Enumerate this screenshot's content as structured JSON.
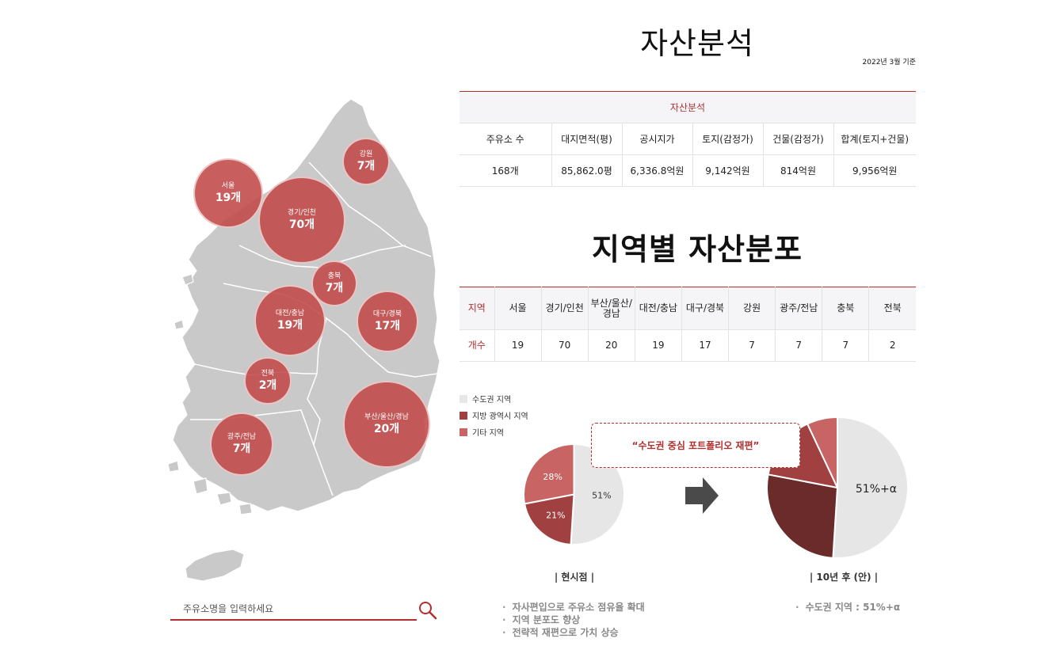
{
  "header": {
    "title": "자산분석",
    "as_of": "2022년 3월 기준",
    "region_title": "지역별 자산분포"
  },
  "asset_table": {
    "caption": "자산분석",
    "headers": [
      "주유소 수",
      "대지면적(평)",
      "공시지가",
      "토지(감정가)",
      "건물(감정가)",
      "합계(토지+건물)"
    ],
    "values": [
      "168개",
      "85,862.0평",
      "6,336.8억원",
      "9,142억원",
      "814억원",
      "9,956억원"
    ]
  },
  "region_table": {
    "row1_label": "지역",
    "row2_label": "개수",
    "regions": [
      "서울",
      "경기/인천",
      "부산/울산/경남",
      "대전/충남",
      "대구/경북",
      "강원",
      "광주/전남",
      "충북",
      "전북"
    ],
    "counts": [
      "19",
      "70",
      "20",
      "19",
      "17",
      "7",
      "7",
      "7",
      "2"
    ]
  },
  "map": {
    "bubbles": [
      {
        "name": "서울",
        "count": "19개"
      },
      {
        "name": "경기/인천",
        "count": "70개"
      },
      {
        "name": "강원",
        "count": "7개"
      },
      {
        "name": "충북",
        "count": "7개"
      },
      {
        "name": "대전/충남",
        "count": "19개"
      },
      {
        "name": "대구/경북",
        "count": "17개"
      },
      {
        "name": "전북",
        "count": "2개"
      },
      {
        "name": "부산/울산/경남",
        "count": "20개"
      },
      {
        "name": "광주/전남",
        "count": "7개"
      }
    ]
  },
  "search": {
    "placeholder": "주유소명을 입력하세요",
    "icon": "search-icon"
  },
  "legend": [
    {
      "label": "수도권 지역",
      "color": "#e6e6e6"
    },
    {
      "label": "지방 광역시 지역",
      "color": "#a04040"
    },
    {
      "label": "기타 지역",
      "color": "#c86464"
    }
  ],
  "pie_current": {
    "caption": "| 현시점 |",
    "slices": [
      {
        "label": "51%",
        "value": 51,
        "color": "#e6e6e6"
      },
      {
        "label": "21%",
        "value": 21,
        "color": "#a04040"
      },
      {
        "label": "28%",
        "value": 28,
        "color": "#c86464"
      }
    ],
    "bullets": [
      "자사편입으로 주유소 점유율 확대",
      "지역 분포도 향상",
      "전략적 재편으로 가치 상승"
    ]
  },
  "pie_future": {
    "caption": "| 10년 후 (안) |",
    "callout": "“수도권 중심 포트폴리오 재편”",
    "slices": [
      {
        "label": "51%+α",
        "value": 51,
        "color": "#e6e6e6"
      },
      {
        "label": "",
        "value": 27,
        "color": "#6b2b2b"
      },
      {
        "label": "",
        "value": 15,
        "color": "#a04040"
      },
      {
        "label": "",
        "value": 7,
        "color": "#c86464"
      }
    ],
    "bullets": [
      "수도권 지역 : 51%+α"
    ]
  }
}
